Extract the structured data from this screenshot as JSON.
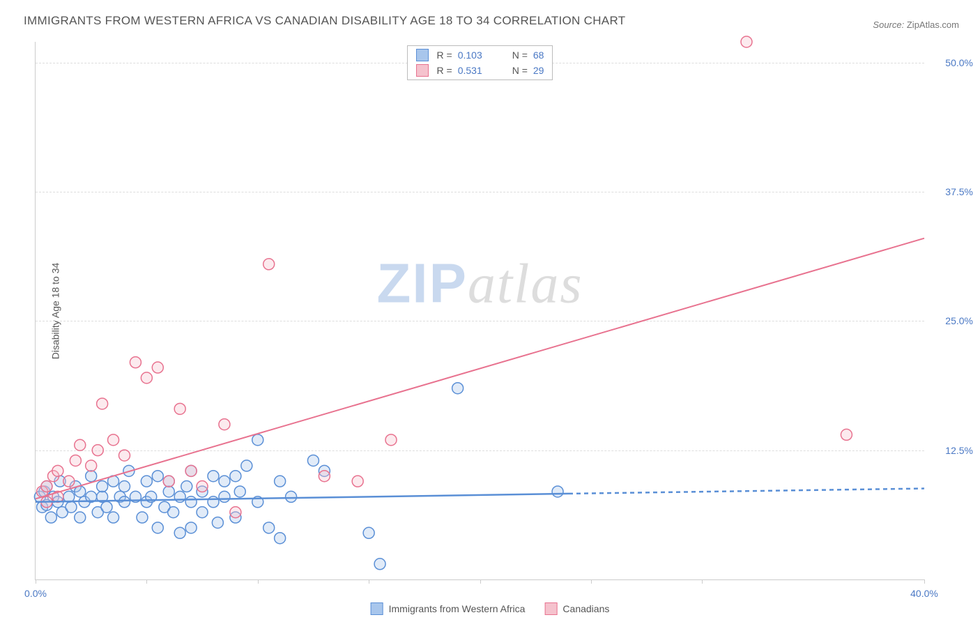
{
  "title": "IMMIGRANTS FROM WESTERN AFRICA VS CANADIAN DISABILITY AGE 18 TO 34 CORRELATION CHART",
  "source_label": "Source:",
  "source_value": "ZipAtlas.com",
  "y_axis_label": "Disability Age 18 to 34",
  "watermark_zip": "ZIP",
  "watermark_atlas": "atlas",
  "chart": {
    "type": "scatter-with-regression",
    "background_color": "#ffffff",
    "grid_color": "#dddddd",
    "axis_color": "#cccccc",
    "tick_label_color": "#4a78c4",
    "title_color": "#555555",
    "xlim": [
      0,
      40
    ],
    "ylim": [
      0,
      52
    ],
    "x_ticks": [
      0,
      5,
      10,
      15,
      20,
      25,
      30,
      40
    ],
    "x_tick_labels": {
      "0": "0.0%",
      "40": "40.0%"
    },
    "y_ticks": [
      12.5,
      25.0,
      37.5,
      50.0
    ],
    "y_tick_labels": [
      "12.5%",
      "25.0%",
      "37.5%",
      "50.0%"
    ],
    "marker_radius": 8,
    "marker_fill_opacity": 0.35,
    "marker_stroke_width": 1.5,
    "series": [
      {
        "key": "immigrants",
        "label": "Immigrants from Western Africa",
        "color_fill": "#a8c6ec",
        "color_stroke": "#5a8fd6",
        "r_value": "0.103",
        "n_value": "68",
        "regression": {
          "x1": 0,
          "y1": 7.5,
          "x2": 24,
          "y2": 8.3,
          "ext_x2": 40,
          "ext_y2": 8.8,
          "line_width": 2.5,
          "dash_ext": "6,5"
        },
        "points": [
          [
            0.2,
            8.0
          ],
          [
            0.3,
            7.0
          ],
          [
            0.4,
            8.5
          ],
          [
            0.5,
            7.2
          ],
          [
            0.5,
            9.0
          ],
          [
            0.7,
            6.0
          ],
          [
            0.8,
            8.0
          ],
          [
            1.0,
            7.5
          ],
          [
            1.1,
            9.5
          ],
          [
            1.2,
            6.5
          ],
          [
            1.5,
            8.0
          ],
          [
            1.6,
            7.0
          ],
          [
            1.8,
            9.0
          ],
          [
            2.0,
            6.0
          ],
          [
            2.0,
            8.5
          ],
          [
            2.2,
            7.5
          ],
          [
            2.5,
            8.0
          ],
          [
            2.5,
            10.0
          ],
          [
            2.8,
            6.5
          ],
          [
            3.0,
            8.0
          ],
          [
            3.0,
            9.0
          ],
          [
            3.2,
            7.0
          ],
          [
            3.5,
            9.5
          ],
          [
            3.5,
            6.0
          ],
          [
            3.8,
            8.0
          ],
          [
            4.0,
            7.5
          ],
          [
            4.0,
            9.0
          ],
          [
            4.2,
            10.5
          ],
          [
            4.5,
            8.0
          ],
          [
            4.8,
            6.0
          ],
          [
            5.0,
            7.5
          ],
          [
            5.0,
            9.5
          ],
          [
            5.2,
            8.0
          ],
          [
            5.5,
            10.0
          ],
          [
            5.5,
            5.0
          ],
          [
            5.8,
            7.0
          ],
          [
            6.0,
            8.5
          ],
          [
            6.0,
            9.5
          ],
          [
            6.2,
            6.5
          ],
          [
            6.5,
            8.0
          ],
          [
            6.5,
            4.5
          ],
          [
            6.8,
            9.0
          ],
          [
            7.0,
            7.5
          ],
          [
            7.0,
            10.5
          ],
          [
            7.0,
            5.0
          ],
          [
            7.5,
            8.5
          ],
          [
            7.5,
            6.5
          ],
          [
            8.0,
            10.0
          ],
          [
            8.0,
            7.5
          ],
          [
            8.2,
            5.5
          ],
          [
            8.5,
            9.5
          ],
          [
            8.5,
            8.0
          ],
          [
            9.0,
            10.0
          ],
          [
            9.0,
            6.0
          ],
          [
            9.2,
            8.5
          ],
          [
            9.5,
            11.0
          ],
          [
            10.0,
            13.5
          ],
          [
            10.0,
            7.5
          ],
          [
            10.5,
            5.0
          ],
          [
            11.0,
            9.5
          ],
          [
            11.0,
            4.0
          ],
          [
            11.5,
            8.0
          ],
          [
            12.5,
            11.5
          ],
          [
            13.0,
            10.5
          ],
          [
            15.0,
            4.5
          ],
          [
            15.5,
            1.5
          ],
          [
            19.0,
            18.5
          ],
          [
            23.5,
            8.5
          ]
        ]
      },
      {
        "key": "canadians",
        "label": "Canadians",
        "color_fill": "#f5c2cd",
        "color_stroke": "#e8728f",
        "r_value": "0.531",
        "n_value": "29",
        "regression": {
          "x1": 0,
          "y1": 7.8,
          "x2": 40,
          "y2": 33.0,
          "line_width": 2
        },
        "points": [
          [
            0.3,
            8.5
          ],
          [
            0.5,
            9.0
          ],
          [
            0.5,
            7.5
          ],
          [
            0.8,
            10.0
          ],
          [
            1.0,
            8.0
          ],
          [
            1.0,
            10.5
          ],
          [
            1.5,
            9.5
          ],
          [
            1.8,
            11.5
          ],
          [
            2.0,
            13.0
          ],
          [
            2.5,
            11.0
          ],
          [
            2.8,
            12.5
          ],
          [
            3.0,
            17.0
          ],
          [
            3.5,
            13.5
          ],
          [
            4.0,
            12.0
          ],
          [
            4.5,
            21.0
          ],
          [
            5.0,
            19.5
          ],
          [
            5.5,
            20.5
          ],
          [
            6.0,
            9.5
          ],
          [
            6.5,
            16.5
          ],
          [
            7.0,
            10.5
          ],
          [
            7.5,
            9.0
          ],
          [
            8.5,
            15.0
          ],
          [
            9.0,
            6.5
          ],
          [
            10.5,
            30.5
          ],
          [
            13.0,
            10.0
          ],
          [
            14.5,
            9.5
          ],
          [
            16.0,
            13.5
          ],
          [
            32.0,
            52.0
          ],
          [
            36.5,
            14.0
          ]
        ]
      }
    ]
  },
  "legend_top": {
    "r_prefix": "R =",
    "n_prefix": "N ="
  }
}
